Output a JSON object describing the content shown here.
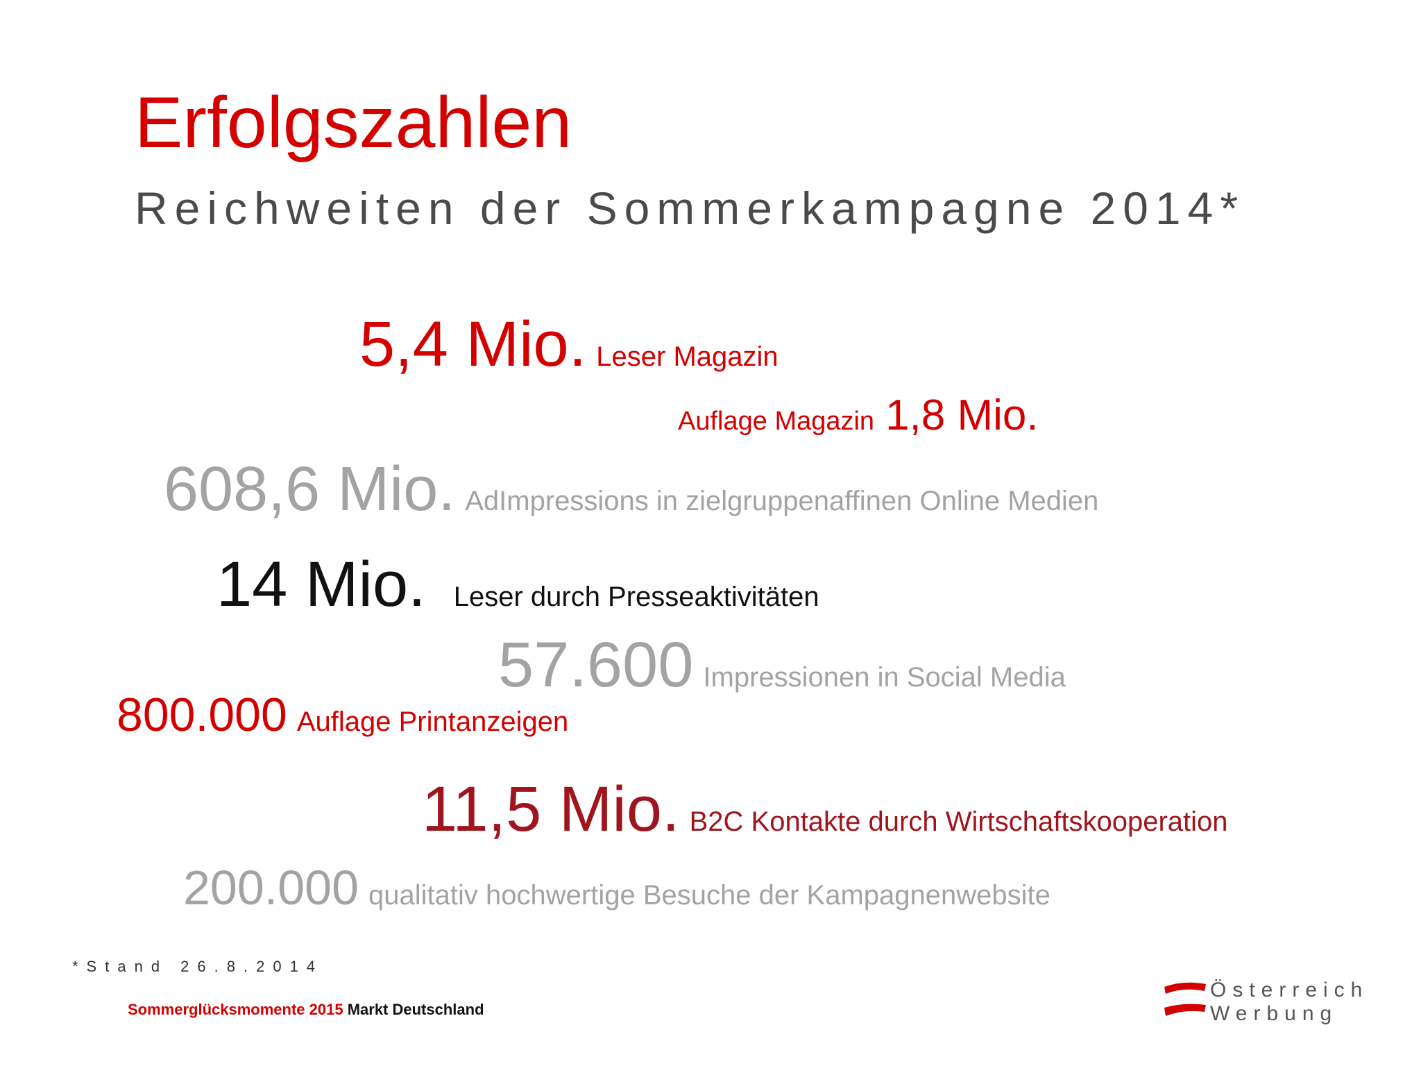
{
  "title": "Erfolgszahlen",
  "subtitle": "Reichweiten der Sommerkampagne 2014*",
  "stats": [
    {
      "value": "5,4 Mio.",
      "label": "Leser Magazin"
    },
    {
      "label": "Auflage Magazin",
      "value": "1,8 Mio."
    },
    {
      "value": "608,6 Mio.",
      "label": "AdImpressions in zielgruppenaffinen Online Medien"
    },
    {
      "value": "14 Mio.",
      "label": "Leser durch Presseaktivitäten"
    },
    {
      "value": "57.600",
      "label": "Impressionen in Social Media"
    },
    {
      "value": "800.000",
      "label": "Auflage Printanzeigen"
    },
    {
      "value": "11,5 Mio.",
      "label": "B2C Kontakte durch Wirtschaftskooperation"
    },
    {
      "value": "200.000",
      "label": "qualitativ hochwertige Besuche der Kampagnenwebsite"
    }
  ],
  "footnote": "*Stand 26.8.2014",
  "footer": {
    "campaign": "Sommerglücksmomente 2015",
    "market": "Markt Deutschland"
  },
  "logo": {
    "line1": "Österreich",
    "line2": "Werbung"
  },
  "colors": {
    "red": "#d40000",
    "dark_red": "#a0151d",
    "gray": "#a3a3a3",
    "text_gray": "#4a4a4a"
  }
}
